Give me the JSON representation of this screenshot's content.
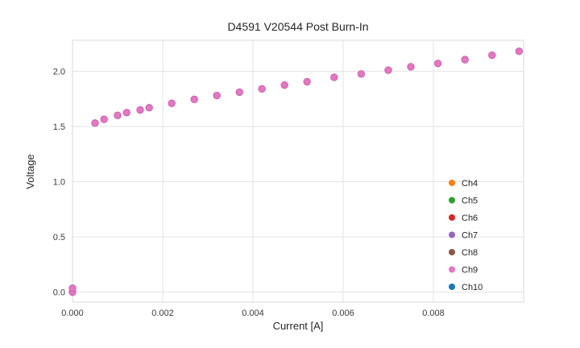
{
  "chart_data": {
    "type": "scatter",
    "title": "D4591 V20544 Post Burn-In",
    "xlabel": "Current [A]",
    "ylabel": "Voltage",
    "xlim": [
      0.0,
      0.01
    ],
    "ylim": [
      -0.09,
      2.28
    ],
    "grid": true,
    "background": "#ffffff",
    "grid_color": "#e3e3e3",
    "xticks": [
      {
        "v": 0.0,
        "label": "0.000"
      },
      {
        "v": 0.002,
        "label": "0.002"
      },
      {
        "v": 0.004,
        "label": "0.004"
      },
      {
        "v": 0.006,
        "label": "0.006"
      },
      {
        "v": 0.008,
        "label": "0.008"
      }
    ],
    "yticks": [
      {
        "v": 0.0,
        "label": "0.0"
      },
      {
        "v": 0.5,
        "label": "0.5"
      },
      {
        "v": 1.0,
        "label": "1.0"
      },
      {
        "v": 1.5,
        "label": "1.5"
      },
      {
        "v": 2.0,
        "label": "2.0"
      }
    ],
    "point_color": "#e377c2",
    "point_edge_color": "#c05ca6",
    "points": [
      [
        0.0,
        0.0
      ],
      [
        0.0,
        0.035
      ],
      [
        0.0005,
        1.53
      ],
      [
        0.0007,
        1.565
      ],
      [
        0.001,
        1.6
      ],
      [
        0.0012,
        1.625
      ],
      [
        0.0015,
        1.65
      ],
      [
        0.0017,
        1.67
      ],
      [
        0.0022,
        1.71
      ],
      [
        0.0027,
        1.745
      ],
      [
        0.0032,
        1.78
      ],
      [
        0.0037,
        1.81
      ],
      [
        0.0042,
        1.84
      ],
      [
        0.0047,
        1.875
      ],
      [
        0.0052,
        1.905
      ],
      [
        0.0058,
        1.945
      ],
      [
        0.0064,
        1.975
      ],
      [
        0.007,
        2.01
      ],
      [
        0.0075,
        2.04
      ],
      [
        0.0081,
        2.07
      ],
      [
        0.0087,
        2.105
      ],
      [
        0.0093,
        2.145
      ],
      [
        0.0099,
        2.18
      ]
    ],
    "legend": {
      "position": "lower right",
      "entries": [
        {
          "label": "Ch4",
          "color": "#ff7f0e"
        },
        {
          "label": "Ch5",
          "color": "#2ca02c"
        },
        {
          "label": "Ch6",
          "color": "#d62728"
        },
        {
          "label": "Ch7",
          "color": "#9467bd"
        },
        {
          "label": "Ch8",
          "color": "#8c564b"
        },
        {
          "label": "Ch9",
          "color": "#e377c2"
        },
        {
          "label": "Ch10",
          "color": "#1f77b4"
        }
      ]
    }
  }
}
